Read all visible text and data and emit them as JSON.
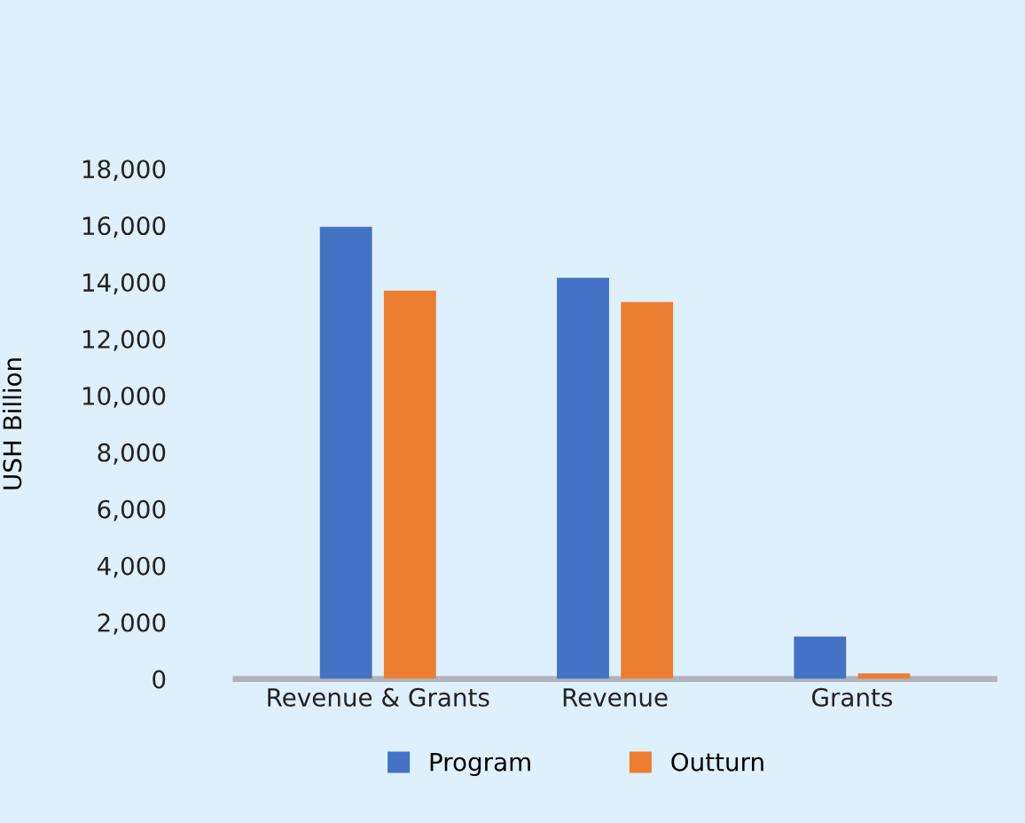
{
  "chart_data": {
    "type": "bar",
    "ylabel": "USH Billion",
    "categories": [
      "Revenue & Grants",
      "Revenue",
      "Grants"
    ],
    "series": [
      {
        "name": "Program",
        "color": "#4472c4",
        "values": [
          15950,
          14150,
          1500
        ]
      },
      {
        "name": "Outturn",
        "color": "#ed7d31",
        "values": [
          13700,
          13300,
          200
        ]
      }
    ],
    "ylim": [
      0,
      18000
    ],
    "yticks": [
      {
        "value": 0,
        "label": "0"
      },
      {
        "value": 2000,
        "label": "2,000"
      },
      {
        "value": 4000,
        "label": "4,000"
      },
      {
        "value": 6000,
        "label": "6,000"
      },
      {
        "value": 8000,
        "label": "8,000"
      },
      {
        "value": 10000,
        "label": "10,000"
      },
      {
        "value": 12000,
        "label": "12,000"
      },
      {
        "value": 14000,
        "label": "14,000"
      },
      {
        "value": 16000,
        "label": "16,000"
      },
      {
        "value": 18000,
        "label": "18,000"
      }
    ],
    "grid": false,
    "legend": "bottom"
  }
}
